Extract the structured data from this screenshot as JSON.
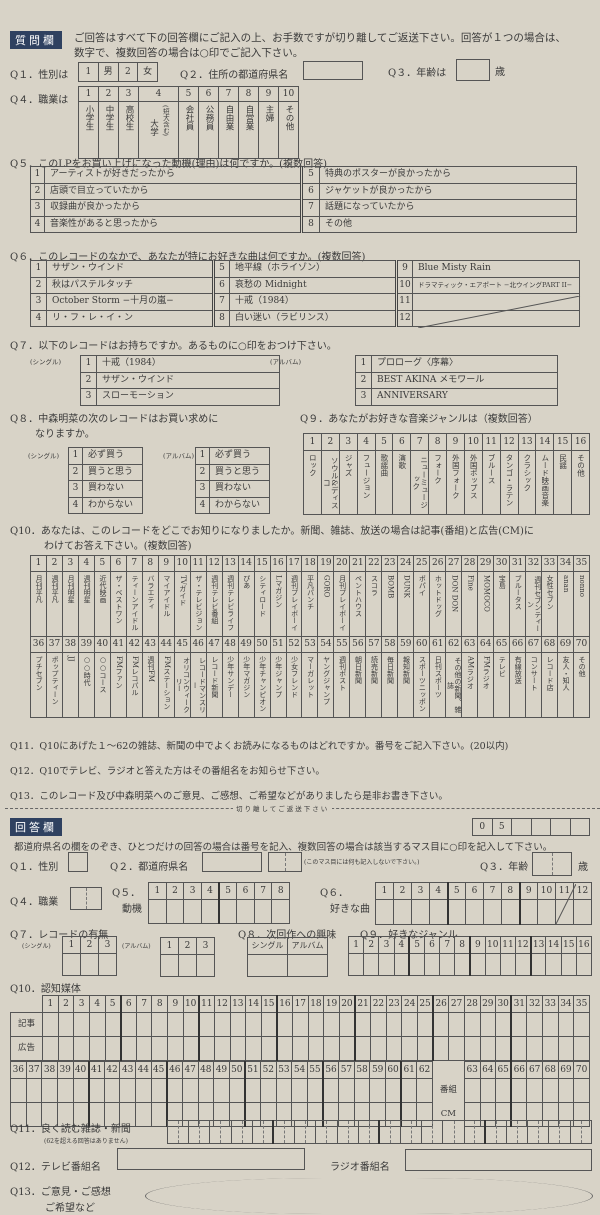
{
  "header": {
    "label": "質問欄",
    "intro_line1": "ご回答はすべて下の回答欄にご記入の上、お手数ですが切り離してご返送下さい。回答が１つの場合は、",
    "intro_line2": "数字で、複数回答の場合は○印でご記入下さい。"
  },
  "q1": {
    "label": "Q１．性別は",
    "options": [
      {
        "num": "1",
        "text": "男"
      },
      {
        "num": "2",
        "text": "女"
      }
    ]
  },
  "q2": {
    "label": "Q２．住所の都道府県名"
  },
  "q3": {
    "label": "Q３．年齢は",
    "unit": "歳"
  },
  "q4": {
    "label": "Q４．職業は",
    "options": [
      {
        "num": "1",
        "text": "小学生"
      },
      {
        "num": "2",
        "text": "中学生"
      },
      {
        "num": "3",
        "text": "高校生"
      },
      {
        "num": "4",
        "text": "大学",
        "note": "(短大含む)"
      },
      {
        "num": "5",
        "text": "会社員"
      },
      {
        "num": "6",
        "text": "公務員"
      },
      {
        "num": "7",
        "text": "自由業"
      },
      {
        "num": "8",
        "text": "自営業"
      },
      {
        "num": "9",
        "text": "主婦"
      },
      {
        "num": "10",
        "text": "その他"
      }
    ]
  },
  "q5": {
    "title": "Q５．このLPをお買い上げになった動機(理由)は何ですか。(複数回答)",
    "options": [
      {
        "num": "1",
        "text": "アーティストが好きだったから"
      },
      {
        "num": "2",
        "text": "店頭で目立っていたから"
      },
      {
        "num": "3",
        "text": "収録曲が良かったから"
      },
      {
        "num": "4",
        "text": "音楽性があると思ったから"
      },
      {
        "num": "5",
        "text": "特典のポスターが良かったから"
      },
      {
        "num": "6",
        "text": "ジャケットが良かったから"
      },
      {
        "num": "7",
        "text": "話題になっていたから"
      },
      {
        "num": "8",
        "text": "その他"
      }
    ]
  },
  "q6": {
    "title": "Q６．このレコードのなかで、あなたが特にお好きな曲は何ですか。(複数回答)",
    "options": [
      {
        "num": "1",
        "text": "サザン・ウインド"
      },
      {
        "num": "2",
        "text": "秋はパステルタッチ"
      },
      {
        "num": "3",
        "text": "October Storm −十月の嵐−"
      },
      {
        "num": "4",
        "text": "リ・フ・レ・イ・ン"
      },
      {
        "num": "5",
        "text": "地平線（ホライゾン）"
      },
      {
        "num": "6",
        "text": "哀愁の Midnight"
      },
      {
        "num": "7",
        "text": "十戒（1984）"
      },
      {
        "num": "8",
        "text": "白い迷い（ラビリンス）"
      },
      {
        "num": "9",
        "text": "Blue Misty Rain"
      },
      {
        "num": "10",
        "text": "ドラマティック・エアポート −北ウイングPART II−"
      },
      {
        "num": "11",
        "text": ""
      },
      {
        "num": "12",
        "text": ""
      }
    ]
  },
  "q7": {
    "title": "Q７．以下のレコードはお持ちですか。あるものに○印をおつけ下さい。",
    "single_label": "(シングル)",
    "album_label": "(アルバム)",
    "singles": [
      {
        "num": "1",
        "text": "十戒（1984）"
      },
      {
        "num": "2",
        "text": "サザン・ウインド"
      },
      {
        "num": "3",
        "text": "スローモーション"
      }
    ],
    "albums": [
      {
        "num": "1",
        "text": "プロローグ〈序幕〉"
      },
      {
        "num": "2",
        "text": "BEST AKINA メモワール"
      },
      {
        "num": "3",
        "text": "ANNIVERSARY"
      }
    ]
  },
  "q8": {
    "title_line1": "Q８．中森明菜の次のレコードはお買い求めに",
    "title_line2": "なりますか。",
    "single_label": "(シングル)",
    "album_label": "(アルバム)",
    "options": [
      {
        "num": "1",
        "text": "必ず買う"
      },
      {
        "num": "2",
        "text": "買うと思う"
      },
      {
        "num": "3",
        "text": "買わない"
      },
      {
        "num": "4",
        "text": "わからない"
      }
    ]
  },
  "q9": {
    "title": "Q９．あなたがお好きな音楽ジャンルは（複数回答）",
    "options": [
      {
        "num": "1",
        "text": "ロック"
      },
      {
        "num": "2",
        "text": "ソウル&ディスコ"
      },
      {
        "num": "3",
        "text": "ジャズ"
      },
      {
        "num": "4",
        "text": "フュージョン"
      },
      {
        "num": "5",
        "text": "歌謡曲"
      },
      {
        "num": "6",
        "text": "演歌"
      },
      {
        "num": "7",
        "text": "ニューミュージック"
      },
      {
        "num": "8",
        "text": "フォーク"
      },
      {
        "num": "9",
        "text": "外国フォーク"
      },
      {
        "num": "10",
        "text": "外国ポップス"
      },
      {
        "num": "11",
        "text": "ブルース"
      },
      {
        "num": "12",
        "text": "タンゴ・ラテン"
      },
      {
        "num": "13",
        "text": "クラシック"
      },
      {
        "num": "14",
        "text": "ムード映画音楽"
      },
      {
        "num": "15",
        "text": "民謡"
      },
      {
        "num": "16",
        "text": "その他"
      }
    ]
  },
  "q10": {
    "title_line1": "Q10．あなたは、このレコードをどこでお知りになりましたか。新聞、雑誌、放送の場合は記事(番組)と広告(CM)に",
    "title_line2": "わけてお答え下さい。(複数回答)",
    "options": [
      {
        "num": "1",
        "text": "月刊平凡"
      },
      {
        "num": "2",
        "text": "週刊平凡"
      },
      {
        "num": "3",
        "text": "月刊明星"
      },
      {
        "num": "4",
        "text": "週刊明星"
      },
      {
        "num": "5",
        "text": "近代映画"
      },
      {
        "num": "6",
        "text": "ザ・ベストワン"
      },
      {
        "num": "7",
        "text": "ティーンアイドル"
      },
      {
        "num": "8",
        "text": "バラエティ"
      },
      {
        "num": "9",
        "text": "マイアイドル"
      },
      {
        "num": "10",
        "text": "TVガイド"
      },
      {
        "num": "11",
        "text": "ザ・テレビジョン"
      },
      {
        "num": "12",
        "text": "週刊テレビ番組"
      },
      {
        "num": "13",
        "text": "週刊テレビライフ"
      },
      {
        "num": "14",
        "text": "ぴあ"
      },
      {
        "num": "15",
        "text": "シティロード"
      },
      {
        "num": "16",
        "text": "Lマガジン"
      },
      {
        "num": "17",
        "text": "週刊プレイボーイ"
      },
      {
        "num": "18",
        "text": "平凡パンチ"
      },
      {
        "num": "19",
        "text": "GORO"
      },
      {
        "num": "20",
        "text": "月刊プレイボーイ"
      },
      {
        "num": "21",
        "text": "ペントハウス"
      },
      {
        "num": "22",
        "text": "スコラ"
      },
      {
        "num": "23",
        "text": "BOMB"
      },
      {
        "num": "24",
        "text": "DUNK"
      },
      {
        "num": "25",
        "text": "ポパイ"
      },
      {
        "num": "26",
        "text": "ホットドッグ"
      },
      {
        "num": "27",
        "text": "DON DON"
      },
      {
        "num": "28",
        "text": "Fine"
      },
      {
        "num": "29",
        "text": "MOMOCO"
      },
      {
        "num": "30",
        "text": "宝島"
      },
      {
        "num": "31",
        "text": "ブルータス"
      },
      {
        "num": "32",
        "text": "週刊セブンティーン"
      },
      {
        "num": "33",
        "text": "女性セブン"
      },
      {
        "num": "34",
        "text": "anan"
      },
      {
        "num": "35",
        "text": "nonno"
      },
      {
        "num": "36",
        "text": "プチセブン"
      },
      {
        "num": "37",
        "text": "ポップティーン"
      },
      {
        "num": "38",
        "text": "JJ"
      },
      {
        "num": "39",
        "text": "○○時代"
      },
      {
        "num": "40",
        "text": "○○コース"
      },
      {
        "num": "41",
        "text": "FMファン"
      },
      {
        "num": "42",
        "text": "FMレコパル"
      },
      {
        "num": "43",
        "text": "週刊FM"
      },
      {
        "num": "44",
        "text": "FMステーション"
      },
      {
        "num": "45",
        "text": "オリコンウィークリー"
      },
      {
        "num": "46",
        "text": "レコードマンスリー"
      },
      {
        "num": "47",
        "text": "レコード新聞"
      },
      {
        "num": "48",
        "text": "少年サンデー"
      },
      {
        "num": "49",
        "text": "少年マガジン"
      },
      {
        "num": "50",
        "text": "少年チャンピオン"
      },
      {
        "num": "51",
        "text": "少年ジャンプ"
      },
      {
        "num": "52",
        "text": "少女フレンド"
      },
      {
        "num": "53",
        "text": "マーガレット"
      },
      {
        "num": "54",
        "text": "ヤングジャンプ"
      },
      {
        "num": "55",
        "text": "週刊ポスト"
      },
      {
        "num": "56",
        "text": "朝日新聞"
      },
      {
        "num": "57",
        "text": "読売新聞"
      },
      {
        "num": "58",
        "text": "毎日新聞"
      },
      {
        "num": "59",
        "text": "報知新聞"
      },
      {
        "num": "60",
        "text": "スポーツニッポン"
      },
      {
        "num": "61",
        "text": "日刊スポーツ"
      },
      {
        "num": "62",
        "text": "その他の新聞、雑誌"
      },
      {
        "num": "63",
        "text": "AMラジオ"
      },
      {
        "num": "64",
        "text": "FMラジオ"
      },
      {
        "num": "65",
        "text": "テレビ"
      },
      {
        "num": "66",
        "text": "有線放送"
      },
      {
        "num": "67",
        "text": "コンサート"
      },
      {
        "num": "68",
        "text": "レコード店"
      },
      {
        "num": "69",
        "text": "友人・知人"
      },
      {
        "num": "70",
        "text": "その他"
      }
    ]
  },
  "q11": {
    "text": "Q11．Q10にあげた１〜62の雑誌、新聞の中でよくお読みになるものはどれですか。番号をご記入下さい。(20以内)"
  },
  "q12": {
    "text": "Q12．Q10でテレビ、ラジオと答えた方はその番組名をお知らせ下さい。"
  },
  "q13": {
    "text": "Q13．このレコード及び中森明菜へのご意見、ご感想、ご希望などがありましたら是非お書き下さい。"
  },
  "cut_line": "切り離してご返送下さい",
  "answer": {
    "label": "回答欄",
    "code": [
      "0",
      "5",
      "",
      "",
      "",
      ""
    ],
    "instruction": "都道府県名の欄をのぞき、ひとつだけの回答の場合は番号を記入、複数回答の場合は該当するマス目に○印を記入して下さい。",
    "q1_label": "Q１．性別",
    "q2_label": "Q２．都道府県名",
    "q2_note": "(このマス目には何も記入しないで下さい。)",
    "q3_label": "Q３．年齢",
    "q3_unit": "歳",
    "q4_label": "Q４．職業",
    "q5_label": "Q５．",
    "q5_sub": "動機",
    "q6_label": "Q６．",
    "q6_sub": "好きな曲",
    "q7_label": "Q７．レコードの有無",
    "single_label": "(シングル)",
    "album_label": "(アルバム)",
    "q8_label": "Q８．次回作への興味",
    "q8_cols": [
      "シングル",
      "アルバム"
    ],
    "q9_label": "Q９．好きなジャンル",
    "q10_label": "Q10．認知媒体",
    "row_labels": [
      "記事",
      "広告"
    ],
    "row_labels2": [
      "番組",
      "CM"
    ],
    "q11_label": "Q11．良く読む雑誌・新聞",
    "q11_note": "(62を超える回答はありません)",
    "q12_label": "Q12．テレビ番組名",
    "q12_radio": "ラジオ番組名",
    "q13_line1": "Q13．ご意見・ご感想",
    "q13_line2": "ご希望など"
  },
  "colors": {
    "paper": "#d8d3c7",
    "label_bg": "#2f4160",
    "ink": "#3a3a3a"
  }
}
